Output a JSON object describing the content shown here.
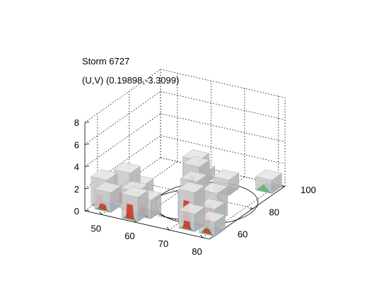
{
  "chart_data": {
    "type": "surface3d",
    "title": "Storm 6727",
    "subtitle": "(U,V) (0.19898,-3.3099)",
    "xlabel": "",
    "ylabel": "",
    "zlabel": "",
    "x_ticks": [
      "50",
      "60",
      "70",
      "80"
    ],
    "y_ticks": [
      "60",
      "80",
      "100"
    ],
    "z_ticks": [
      "0",
      "2",
      "4",
      "6",
      "8"
    ],
    "xlim": [
      45,
      82
    ],
    "ylim": [
      52,
      100
    ],
    "zlim": [
      0,
      8
    ],
    "grid": true,
    "legend": "none",
    "colors": {
      "surface": "#c9c9c9",
      "low": "#4a5fc1",
      "mid": "#5fb37a",
      "high": "#d43a2e",
      "grid": "#000000"
    },
    "cells": [
      {
        "x": 47,
        "y": 60,
        "z": 2.6,
        "core": 1.1
      },
      {
        "x": 49,
        "y": 58,
        "z": 1.8,
        "core": 0.6
      },
      {
        "x": 51,
        "y": 66,
        "z": 2.9,
        "core": 1.0
      },
      {
        "x": 53,
        "y": 70,
        "z": 1.5,
        "core": 0.0
      },
      {
        "x": 55,
        "y": 62,
        "z": 1.9,
        "core": 0.7
      },
      {
        "x": 58,
        "y": 56,
        "z": 2.2,
        "core": 1.4
      },
      {
        "x": 60,
        "y": 60,
        "z": 1.7,
        "core": 0.9
      },
      {
        "x": 63,
        "y": 84,
        "z": 3.1,
        "core": 1.2
      },
      {
        "x": 66,
        "y": 78,
        "z": 3.3,
        "core": 2.4
      },
      {
        "x": 68,
        "y": 72,
        "z": 2.7,
        "core": 1.6
      },
      {
        "x": 70,
        "y": 66,
        "z": 2.3,
        "core": 1.0
      },
      {
        "x": 72,
        "y": 62,
        "z": 3.0,
        "core": 2.1
      },
      {
        "x": 74,
        "y": 58,
        "z": 1.6,
        "core": 0.8
      },
      {
        "x": 70,
        "y": 88,
        "z": 1.4,
        "core": 0.0
      },
      {
        "x": 76,
        "y": 68,
        "z": 2.6,
        "core": 1.5
      },
      {
        "x": 78,
        "y": 62,
        "z": 1.9,
        "core": 1.2
      },
      {
        "x": 80,
        "y": 58,
        "z": 1.3,
        "core": 0.5
      },
      {
        "x": 79,
        "y": 96,
        "z": 1.2,
        "core": 0.0
      },
      {
        "x": 61,
        "y": 92,
        "z": 1.0,
        "core": 0.0
      }
    ]
  }
}
